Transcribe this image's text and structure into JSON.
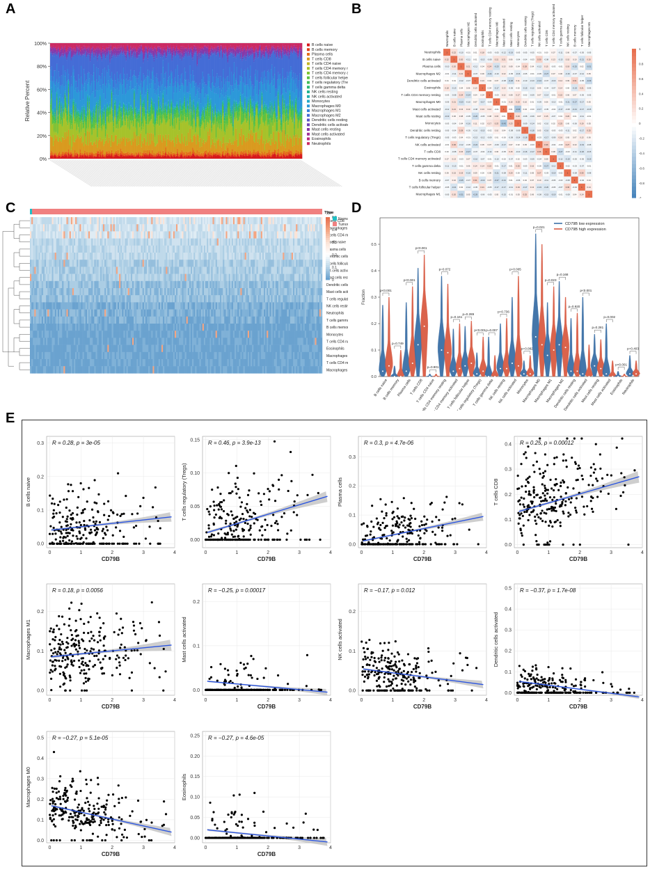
{
  "panel_labels": {
    "a": "A",
    "b": "B",
    "c": "C",
    "d": "D",
    "e": "E"
  },
  "cell_types": [
    "Neutrophils",
    "B cells naive",
    "Plasma cells",
    "Macrophages M2",
    "Dendritic cells activated",
    "Eosinophils",
    "T cells CD4 memory resting",
    "Macrophages M0",
    "Mast cells activated",
    "Mast cells resting",
    "Monocytes",
    "Dendritic cells resting",
    "T cells regulatory (Tregs)",
    "NK cells activated",
    "T cells CD8",
    "T cells CD4 memory activated",
    "T cells gamma delta",
    "NK cells resting",
    "B cells memory",
    "T cells follicular helper",
    "Macrophages M1"
  ],
  "chart_data": [
    {
      "panel": "A",
      "type": "bar",
      "stacked": true,
      "ylabel": "Relative Percent",
      "yticks": [
        "0%",
        "20%",
        "40%",
        "60%",
        "80%",
        "100%"
      ],
      "legend": [
        "B cells naive",
        "B cells memory",
        "Plasma cells",
        "T cells CD8",
        "T cells CD4 naive",
        "T cells CD4 memory resting",
        "T cells CD4 memory activated",
        "T cells follicular helper",
        "T cells regulatory (Tregs)",
        "T cells gamma delta",
        "NK cells resting",
        "NK cells activated",
        "Monocytes",
        "Macrophages M0",
        "Macrophages M1",
        "Macrophages M2",
        "Dendritic cells resting",
        "Dendritic cells activated",
        "Mast cells resting",
        "Mast cells activated",
        "Eosinophils",
        "Neutrophils"
      ],
      "legend_colors": [
        "#d7191c",
        "#e0401a",
        "#e46d1a",
        "#d99a1f",
        "#c2b526",
        "#a6c22b",
        "#7fc534",
        "#5dc243",
        "#43bd57",
        "#2fb874",
        "#24b592",
        "#22b0ae",
        "#25a8c8",
        "#2c98d9",
        "#3683db",
        "#446cd6",
        "#5856c9",
        "#6e43b8",
        "#8738a8",
        "#a13096",
        "#b82a7f",
        "#cc2b63"
      ],
      "mean_fractions": [
        0.025,
        0.01,
        0.02,
        0.11,
        0.0,
        0.14,
        0.01,
        0.06,
        0.03,
        0.01,
        0.02,
        0.01,
        0.01,
        0.16,
        0.09,
        0.19,
        0.01,
        0.01,
        0.03,
        0.01,
        0.01,
        0.04
      ],
      "n_samples": 280
    },
    {
      "panel": "B",
      "type": "heatmap",
      "rows": [
        "Neutrophils",
        "B cells naive",
        "Plasma cells",
        "Macrophages M2",
        "Dendritic cells activated",
        "Eosinophils",
        "T cells CD4 memory resting",
        "Macrophages M0",
        "Mast cells activated",
        "Mast cells resting",
        "Monocytes",
        "Dendritic cells resting",
        "T cells regulatory (Tregs)",
        "NK cells activated",
        "T cells CD8",
        "T cells CD4 memory activated",
        "T cells gamma delta",
        "NK cells resting",
        "B cells memory",
        "T cells follicular helper",
        "Macrophages M1"
      ],
      "columns": [
        "Neutrophils",
        "B cells naive",
        "Plasma cells",
        "Macrophages M2",
        "Dendritic cells activated",
        "Eosinophils",
        "T cells CD4 memory resting",
        "Macrophages M0",
        "Mast cells activated",
        "Mast cells resting",
        "Monocytes",
        "Dendritic cells resting",
        "T cells regulatory (Tregs)",
        "NK cells activated",
        "T cells CD8",
        "T cells CD4 memory activated",
        "T cells gamma delta",
        "NK cells resting",
        "B cells memory",
        "T cells follicular helper",
        "Macrophages M1"
      ],
      "colorbar_ticks": [
        "1",
        "0.8",
        "0.6",
        "0.4",
        "0.2",
        "0",
        "-0.2",
        "-0.4",
        "-0.6",
        "-0.8",
        "-1"
      ],
      "diagonal": 1
    },
    {
      "panel": "C",
      "type": "heatmap",
      "annotation_title": "Type",
      "annotation_legend": [
        "Normal",
        "Tumor"
      ],
      "annotation_colors": [
        "#1fbfc4",
        "#f08080"
      ],
      "colorbar_ticks": [
        "0.5",
        "0.4",
        "0.3",
        "0.2",
        "0.1",
        "0"
      ],
      "rows": [
        "T cells CD8",
        "Macrophages M0",
        "T cells CD4 memory resting",
        "B cells naive",
        "Plasma cells",
        "Dendritic cells resting",
        "T cells follicular helper",
        "NK cells activated",
        "Mast cells resting",
        "Dendritic cells activated",
        "Mast cells activated",
        "T cells regulatory (Tregs)",
        "NK cells resting",
        "Neutrophils",
        "T cells gamma delta",
        "B cells memory",
        "Monocytes",
        "T cells CD4 naive",
        "Eosinophils",
        "Macrophages M1",
        "T cells CD4 memory activated",
        "Macrophages M2"
      ]
    },
    {
      "panel": "D",
      "type": "violin",
      "ylabel": "Fraction",
      "ylim": [
        0,
        0.6
      ],
      "yticks": [
        "0.0",
        "0.1",
        "0.2",
        "0.3",
        "0.4",
        "0.5"
      ],
      "series": [
        {
          "name": "CD79B low expression",
          "color": "#3b6fa6"
        },
        {
          "name": "CD79B high expression",
          "color": "#d95b43"
        }
      ],
      "categories": [
        "B cells naive",
        "B cells memory",
        "Plasma cells",
        "T cells CD8",
        "T cells CD4 naive",
        "T cells CD4 memory resting",
        "T cells CD4 memory activated",
        "T cells follicular helper",
        "T cells regulatory (Tregs)",
        "T cells gamma delta",
        "NK cells resting",
        "NK cells activated",
        "Monocytes",
        "Macrophages M0",
        "Macrophages M1",
        "Macrophages M2",
        "Dendritic cells resting",
        "Dendritic cells activated",
        "Mast cells resting",
        "Mast cells activated",
        "Eosinophils",
        "Neutrophils"
      ],
      "pvalues": [
        "p<0.001",
        "p=0.749",
        "p<0.001",
        "p<0.001",
        "p=0.901",
        "p=0.072",
        "p=0.161",
        "p=0.289",
        "p<0.001",
        "p=0.007",
        "p=0.736",
        "p=0.005",
        "p=0.082",
        "p=0.021",
        "p=0.023",
        "p=0.168",
        "p=0.920",
        "p<0.001",
        "p=0.281",
        "p=0.002",
        "p<0.001",
        "p=0.403"
      ],
      "max_low": [
        0.27,
        0.04,
        0.28,
        0.41,
        0.01,
        0.38,
        0.18,
        0.19,
        0.09,
        0.15,
        0.2,
        0.3,
        0.06,
        0.54,
        0.28,
        0.36,
        0.22,
        0.3,
        0.16,
        0.2,
        0.02,
        0.08
      ],
      "max_high": [
        0.3,
        0.1,
        0.34,
        0.46,
        0.01,
        0.35,
        0.2,
        0.21,
        0.15,
        0.08,
        0.22,
        0.38,
        0.08,
        0.5,
        0.34,
        0.3,
        0.24,
        0.12,
        0.14,
        0.06,
        0.01,
        0.06
      ],
      "median_low": [
        0.02,
        0.0,
        0.02,
        0.12,
        0.0,
        0.1,
        0.02,
        0.04,
        0.01,
        0.0,
        0.03,
        0.05,
        0.01,
        0.15,
        0.08,
        0.12,
        0.02,
        0.01,
        0.04,
        0.01,
        0.0,
        0.01
      ],
      "median_high": [
        0.04,
        0.0,
        0.05,
        0.19,
        0.0,
        0.09,
        0.03,
        0.05,
        0.02,
        0.0,
        0.03,
        0.04,
        0.01,
        0.12,
        0.1,
        0.11,
        0.02,
        0.0,
        0.03,
        0.0,
        0.0,
        0.01
      ]
    },
    {
      "panel": "E",
      "type": "scatter",
      "xlabel": "CD79B",
      "xticks": [
        "0",
        "1",
        "2",
        "3",
        "4"
      ],
      "subplots": [
        {
          "ylabel": "B cells naive",
          "stat": "R = 0.28, p = 3e-05",
          "yticks": [
            "0.0",
            "0.1",
            "0.2",
            "0.3"
          ],
          "ylim": [
            0,
            0.32
          ],
          "fit": [
            0.04,
            0.08
          ],
          "spread": 0.06,
          "zero_frac": 0.25
        },
        {
          "ylabel": "T cells regulatory (Tregs)",
          "stat": "R = 0.46, p = 3.9e-13",
          "yticks": [
            "0.00",
            "0.05",
            "0.10",
            "0.15"
          ],
          "ylim": [
            0,
            0.155
          ],
          "fit": [
            0.01,
            0.065
          ],
          "spread": 0.035,
          "zero_frac": 0.25
        },
        {
          "ylabel": "Plasma cells",
          "stat": "R = 0.3, p = 4.7e-06",
          "yticks": [
            "0.0",
            "0.1",
            "0.2",
            "0.3"
          ],
          "ylim": [
            0,
            0.37
          ],
          "fit": [
            0.01,
            0.095
          ],
          "spread": 0.06,
          "zero_frac": 0.25
        },
        {
          "ylabel": "T cells CD8",
          "stat": "R = 0.25, p = 0.00012",
          "yticks": [
            "0.0",
            "0.1",
            "0.2",
            "0.3",
            "0.4"
          ],
          "ylim": [
            0,
            0.43
          ],
          "fit": [
            0.13,
            0.27
          ],
          "spread": 0.1,
          "zero_frac": 0.03
        },
        {
          "ylabel": "Macrophages M1",
          "stat": "R = 0.18, p = 0.0056",
          "yticks": [
            "0.0",
            "0.1",
            "0.2"
          ],
          "ylim": [
            0,
            0.27
          ],
          "fit": [
            0.085,
            0.115
          ],
          "spread": 0.06,
          "zero_frac": 0.03
        },
        {
          "ylabel": "Mast cells activated",
          "stat": "R = −0.25, p = 0.00017",
          "yticks": [
            "0.0",
            "0.1",
            "0.2"
          ],
          "ylim": [
            0,
            0.24
          ],
          "fit": [
            0.02,
            -0.005
          ],
          "spread": 0.03,
          "zero_frac": 0.75
        },
        {
          "ylabel": "NK cells activated",
          "stat": "R = −0.17, p = 0.012",
          "yticks": [
            "0.0",
            "0.1",
            "0.2"
          ],
          "ylim": [
            0,
            0.27
          ],
          "fit": [
            0.055,
            0.015
          ],
          "spread": 0.04,
          "zero_frac": 0.2
        },
        {
          "ylabel": "Dendritic cells activated",
          "stat": "R = −0.37, p = 1.7e-08",
          "yticks": [
            "0.0",
            "0.1",
            "0.2",
            "0.3",
            "0.4",
            "0.5"
          ],
          "ylim": [
            0,
            0.52
          ],
          "fit": [
            0.055,
            -0.02
          ],
          "spread": 0.04,
          "zero_frac": 0.35
        },
        {
          "ylabel": "Macrophages M0",
          "stat": "R = −0.27, p = 5.1e-05",
          "yticks": [
            "0.0",
            "0.1",
            "0.2",
            "0.3",
            "0.4",
            "0.5"
          ],
          "ylim": [
            0,
            0.53
          ],
          "fit": [
            0.17,
            0.04
          ],
          "spread": 0.08,
          "zero_frac": 0.05
        },
        {
          "ylabel": "Eosinophils",
          "stat": "R = −0.27, p = 4.6e-05",
          "yticks": [
            "0.00",
            "0.05",
            "0.10",
            "0.15",
            "0.20",
            "0.25"
          ],
          "ylim": [
            0,
            0.26
          ],
          "fit": [
            0.02,
            -0.01
          ],
          "spread": 0.04,
          "zero_frac": 0.75
        }
      ]
    }
  ]
}
